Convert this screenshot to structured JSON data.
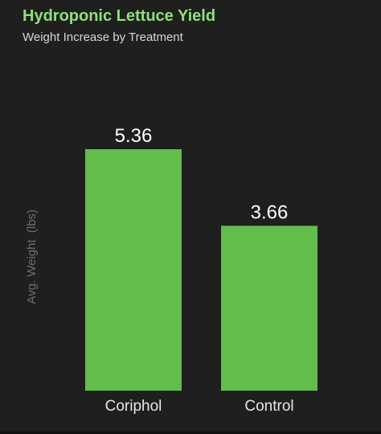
{
  "header": {
    "title": "Hydroponic Lettuce Yield",
    "subtitle": "Weight Increase by Treatment"
  },
  "colors": {
    "background": "#1f1f1f",
    "title": "#8fe07a",
    "bar": "#63bd4a",
    "value_label": "#ffffff",
    "category_label": "#e6e6e6",
    "axis_label": "#6e6e6e"
  },
  "chart_data": {
    "type": "bar",
    "title": "Hydroponic Lettuce Yield",
    "subtitle": "Weight Increase by Treatment",
    "xlabel": "",
    "ylabel": "Avg. Weight  (lbs)",
    "categories": [
      "Coriphol",
      "Control"
    ],
    "values": [
      5.36,
      3.66
    ],
    "value_labels": [
      "5.36",
      "3.66"
    ],
    "ylim": [
      0,
      5.36
    ],
    "grid": false,
    "legend": "none"
  }
}
